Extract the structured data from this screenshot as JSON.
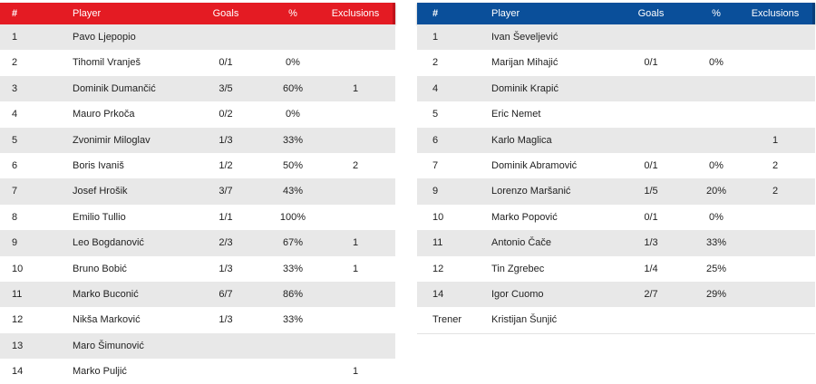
{
  "left": {
    "headers": {
      "num": "#",
      "player": "Player",
      "goals": "Goals",
      "pct": "%",
      "exclusions": "Exclusions"
    },
    "rows": [
      {
        "num": "1",
        "name": "Pavo Ljepopio",
        "goals": "",
        "pct": "",
        "exc": ""
      },
      {
        "num": "2",
        "name": "Tihomil Vranješ",
        "goals": "0/1",
        "pct": "0%",
        "exc": ""
      },
      {
        "num": "3",
        "name": "Dominik Dumančić",
        "goals": "3/5",
        "pct": "60%",
        "exc": "1"
      },
      {
        "num": "4",
        "name": "Mauro Prkoča",
        "goals": "0/2",
        "pct": "0%",
        "exc": ""
      },
      {
        "num": "5",
        "name": "Zvonimir Miloglav",
        "goals": "1/3",
        "pct": "33%",
        "exc": ""
      },
      {
        "num": "6",
        "name": "Boris Ivaniš",
        "goals": "1/2",
        "pct": "50%",
        "exc": "2"
      },
      {
        "num": "7",
        "name": "Josef Hrošik",
        "goals": "3/7",
        "pct": "43%",
        "exc": ""
      },
      {
        "num": "8",
        "name": "Emilio Tullio",
        "goals": "1/1",
        "pct": "100%",
        "exc": ""
      },
      {
        "num": "9",
        "name": "Leo Bogdanović",
        "goals": "2/3",
        "pct": "67%",
        "exc": "1"
      },
      {
        "num": "10",
        "name": "Bruno Bobić",
        "goals": "1/3",
        "pct": "33%",
        "exc": "1"
      },
      {
        "num": "11",
        "name": "Marko Buconić",
        "goals": "6/7",
        "pct": "86%",
        "exc": ""
      },
      {
        "num": "12",
        "name": "Nikša Marković",
        "goals": "1/3",
        "pct": "33%",
        "exc": ""
      },
      {
        "num": "13",
        "name": "Maro Šimunović",
        "goals": "",
        "pct": "",
        "exc": ""
      },
      {
        "num": "14",
        "name": "Marko Puljić",
        "goals": "",
        "pct": "",
        "exc": "1"
      }
    ]
  },
  "right": {
    "headers": {
      "num": "#",
      "player": "Player",
      "goals": "Goals",
      "pct": "%",
      "exclusions": "Exclusions"
    },
    "rows": [
      {
        "num": "1",
        "name": "Ivan Ševeljević",
        "goals": "",
        "pct": "",
        "exc": ""
      },
      {
        "num": "2",
        "name": "Marijan Mihajić",
        "goals": "0/1",
        "pct": "0%",
        "exc": ""
      },
      {
        "num": "4",
        "name": "Dominik Krapić",
        "goals": "",
        "pct": "",
        "exc": ""
      },
      {
        "num": "5",
        "name": "Eric Nemet",
        "goals": "",
        "pct": "",
        "exc": ""
      },
      {
        "num": "6",
        "name": "Karlo Maglica",
        "goals": "",
        "pct": "",
        "exc": "1"
      },
      {
        "num": "7",
        "name": "Dominik Abramović",
        "goals": "0/1",
        "pct": "0%",
        "exc": "2"
      },
      {
        "num": "9",
        "name": "Lorenzo Maršanić",
        "goals": "1/5",
        "pct": "20%",
        "exc": "2"
      },
      {
        "num": "10",
        "name": "Marko Popović",
        "goals": "0/1",
        "pct": "0%",
        "exc": ""
      },
      {
        "num": "11",
        "name": "Antonio Čače",
        "goals": "1/3",
        "pct": "33%",
        "exc": ""
      },
      {
        "num": "12",
        "name": "Tin Zgrebec",
        "goals": "1/4",
        "pct": "25%",
        "exc": ""
      },
      {
        "num": "14",
        "name": "Igor Cuomo",
        "goals": "2/7",
        "pct": "29%",
        "exc": ""
      }
    ],
    "coach": {
      "label": "Trener",
      "name": "Kristijan Šunjić"
    }
  },
  "colors": {
    "left_header": "#e41b23",
    "right_header": "#0a4f9a",
    "row_shade": "#e8e8e8"
  }
}
